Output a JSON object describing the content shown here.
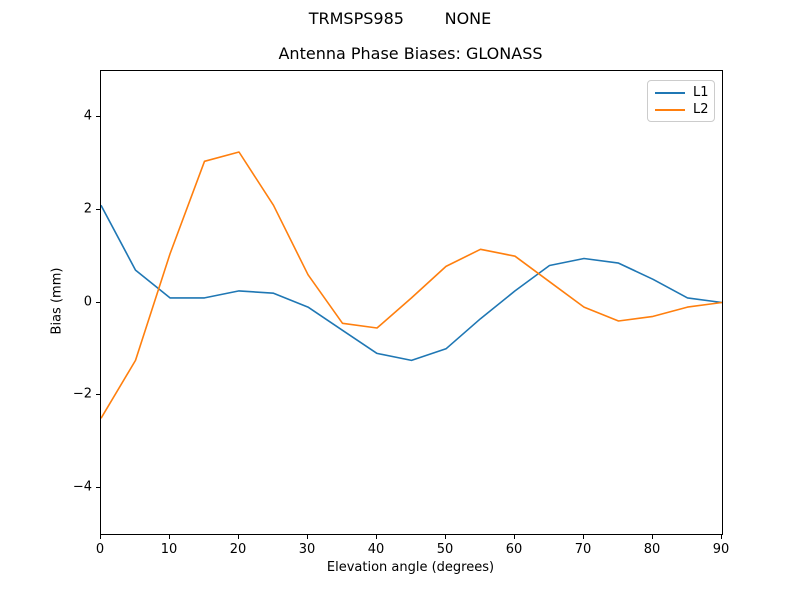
{
  "figure": {
    "suptitle": "TRMSPS985        NONE"
  },
  "chart_data": {
    "type": "line",
    "title": "Antenna Phase Biases: GLONASS",
    "suptitle": "TRMSPS985        NONE",
    "xlabel": "Elevation angle (degrees)",
    "ylabel": "Bias (mm)",
    "xlim": [
      0,
      90
    ],
    "ylim": [
      -5,
      5
    ],
    "xticks": [
      0,
      10,
      20,
      30,
      40,
      50,
      60,
      70,
      80,
      90
    ],
    "yticks": [
      -4,
      -2,
      0,
      2,
      4
    ],
    "grid": false,
    "legend_position": "upper right",
    "background_color": "#ffffff",
    "x": [
      0,
      5,
      10,
      15,
      20,
      25,
      30,
      35,
      40,
      45,
      50,
      55,
      60,
      65,
      70,
      75,
      80,
      85,
      90
    ],
    "series": [
      {
        "name": "L1",
        "color": "#1f77b4",
        "values": [
          2.1,
          0.7,
          0.1,
          0.1,
          0.25,
          0.2,
          -0.1,
          -0.6,
          -1.1,
          -1.25,
          -1.0,
          -0.35,
          0.25,
          0.8,
          0.95,
          0.85,
          0.5,
          0.1,
          0.0
        ]
      },
      {
        "name": "L2",
        "color": "#ff7f0e",
        "values": [
          -2.5,
          -1.25,
          1.05,
          3.05,
          3.25,
          2.1,
          0.6,
          -0.45,
          -0.55,
          0.1,
          0.78,
          1.15,
          1.0,
          0.45,
          -0.1,
          -0.4,
          -0.3,
          -0.1,
          0.0
        ]
      }
    ]
  }
}
